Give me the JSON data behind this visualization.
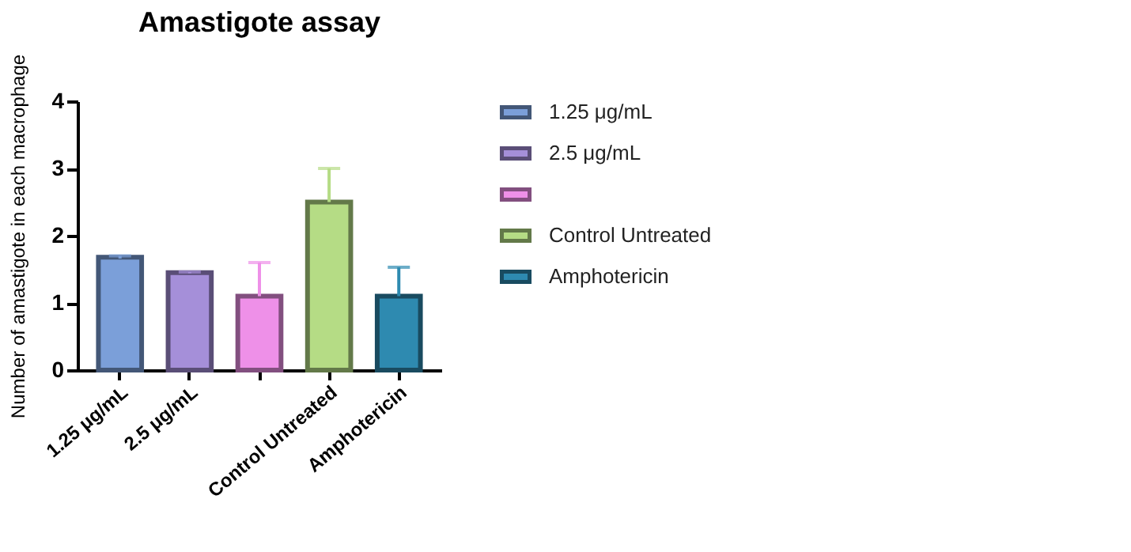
{
  "chart_data": {
    "type": "bar",
    "title": "Amastigote assay",
    "ylabel": "Number of amastigote in each macrophage",
    "categories": [
      "1.25 μg/mL",
      "2.5 μg/mL",
      null,
      "Control Untreated",
      "Amphotericin"
    ],
    "series": [
      {
        "name": "1.25 μg/mL",
        "color": "#7b9fd9",
        "values": [
          1.68,
          null,
          null,
          null,
          null
        ],
        "errors": [
          [
            1.66,
            1.7
          ],
          null,
          null,
          null,
          null
        ]
      },
      {
        "name": "2.5 μg/mL",
        "color": "#a58fd9",
        "values": [
          null,
          1.45,
          null,
          null,
          null
        ],
        "errors": [
          null,
          [
            1.44,
            1.46
          ],
          null,
          null,
          null
        ]
      },
      {
        "color": "#ee90e8",
        "values": [
          null,
          null,
          1.1,
          null,
          null
        ],
        "errors": [
          null,
          null,
          [
            1.1,
            1.6
          ],
          null,
          null
        ]
      },
      {
        "name": "Control Untreated",
        "color": "#b5dc85",
        "values": [
          null,
          null,
          null,
          2.5,
          null
        ],
        "errors": [
          null,
          null,
          null,
          [
            2.5,
            3.0
          ],
          null
        ]
      },
      {
        "name": "Amphotericin",
        "color": "#2e8ab0",
        "values": [
          null,
          null,
          null,
          null,
          1.1
        ],
        "errors": [
          null,
          null,
          null,
          null,
          [
            1.1,
            1.53
          ]
        ]
      }
    ],
    "ylim": [
      0,
      4
    ],
    "yticks": [
      0,
      1,
      2,
      3,
      4
    ],
    "grid": false,
    "legend": "right"
  }
}
